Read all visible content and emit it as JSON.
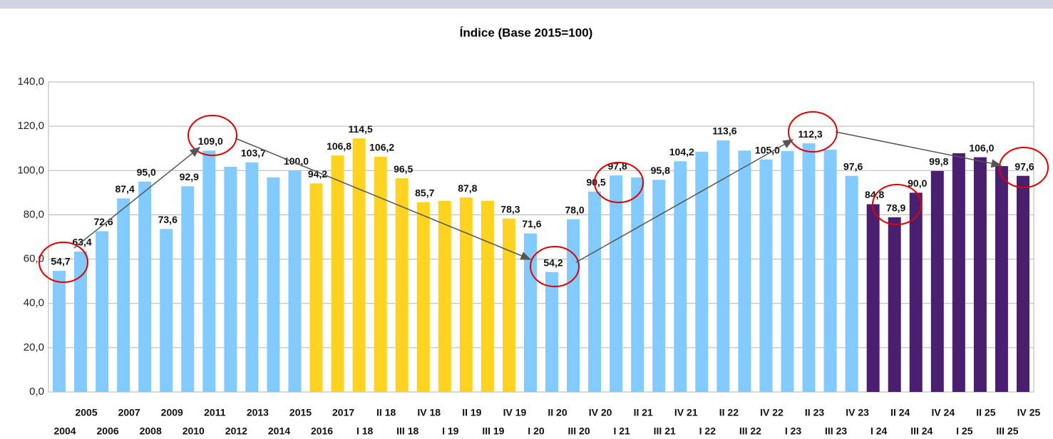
{
  "chart_data": {
    "type": "bar",
    "title": "Índice (Base 2015=100)",
    "categories": [
      "2004",
      "2005",
      "2006",
      "2007",
      "2008",
      "2009",
      "2010",
      "2011",
      "2012",
      "2013",
      "2014",
      "2015",
      "2016",
      "2017",
      "I 18",
      "II 18",
      "III 18",
      "IV 18",
      "I 19",
      "II 19",
      "III 19",
      "IV 19",
      "I 20",
      "II 20",
      "III 20",
      "IV 20",
      "I 21",
      "II 21",
      "III 21",
      "IV 21",
      "I 22",
      "II 22",
      "III 22",
      "IV 22",
      "I 23",
      "II 23",
      "III 23",
      "IV 23",
      "I 24",
      "II 24",
      "III 24",
      "IV 24",
      "I 25",
      "II 25",
      "III 25",
      "IV 25"
    ],
    "values": [
      54.7,
      63.4,
      72.6,
      87.4,
      95.0,
      73.6,
      92.9,
      109.0,
      101.7,
      103.7,
      96.9,
      100.0,
      94.2,
      106.8,
      114.5,
      106.2,
      96.5,
      85.7,
      86.3,
      87.8,
      86.3,
      78.3,
      71.6,
      54.2,
      78.0,
      90.5,
      97.8,
      96.9,
      95.8,
      104.2,
      108.5,
      113.6,
      109.0,
      105.0,
      108.8,
      112.3,
      109.4,
      97.6,
      84.8,
      78.9,
      90.0,
      99.8,
      107.8,
      106.0,
      102.0,
      97.6
    ],
    "value_labels": [
      "54,7",
      "63,4",
      "72,6",
      "87,4",
      "95,0",
      "73,6",
      "92,9",
      "109,0",
      null,
      "103,7",
      null,
      "100,0",
      "94,2",
      "106,8",
      "114,5",
      "106,2",
      "96,5",
      "85,7",
      null,
      "87,8",
      null,
      "78,3",
      "71,6",
      "54,2",
      "78,0",
      "90,5",
      "97,8",
      null,
      "95,8",
      "104,2",
      null,
      "113,6",
      null,
      "105,0",
      null,
      "112,3",
      null,
      "97,6",
      "84,8",
      "78,9",
      "90,0",
      "99,8",
      null,
      "106,0",
      null,
      "97,6"
    ],
    "colors": [
      "#83caff",
      "#83caff",
      "#83caff",
      "#83caff",
      "#83caff",
      "#83caff",
      "#83caff",
      "#83caff",
      "#83caff",
      "#83caff",
      "#83caff",
      "#83caff",
      "#ffd320",
      "#ffd320",
      "#ffd320",
      "#ffd320",
      "#ffd320",
      "#ffd320",
      "#ffd320",
      "#ffd320",
      "#ffd320",
      "#ffd320",
      "#83caff",
      "#83caff",
      "#83caff",
      "#83caff",
      "#83caff",
      "#83caff",
      "#83caff",
      "#83caff",
      "#83caff",
      "#83caff",
      "#83caff",
      "#83caff",
      "#83caff",
      "#83caff",
      "#83caff",
      "#83caff",
      "#4b1f6f",
      "#4b1f6f",
      "#4b1f6f",
      "#4b1f6f",
      "#4b1f6f",
      "#4b1f6f",
      "#4b1f6f",
      "#4b1f6f"
    ],
    "ylim": [
      0,
      140
    ],
    "yticks": [
      {
        "value": 0,
        "label": "0,0"
      },
      {
        "value": 20,
        "label": "20,0"
      },
      {
        "value": 40,
        "label": "40,0"
      },
      {
        "value": 60,
        "label": "60,0"
      },
      {
        "value": 80,
        "label": "80,0"
      },
      {
        "value": 100,
        "label": "100,0"
      },
      {
        "value": 120,
        "label": "120,0"
      },
      {
        "value": 140,
        "label": "140,0"
      }
    ],
    "grid": true
  }
}
